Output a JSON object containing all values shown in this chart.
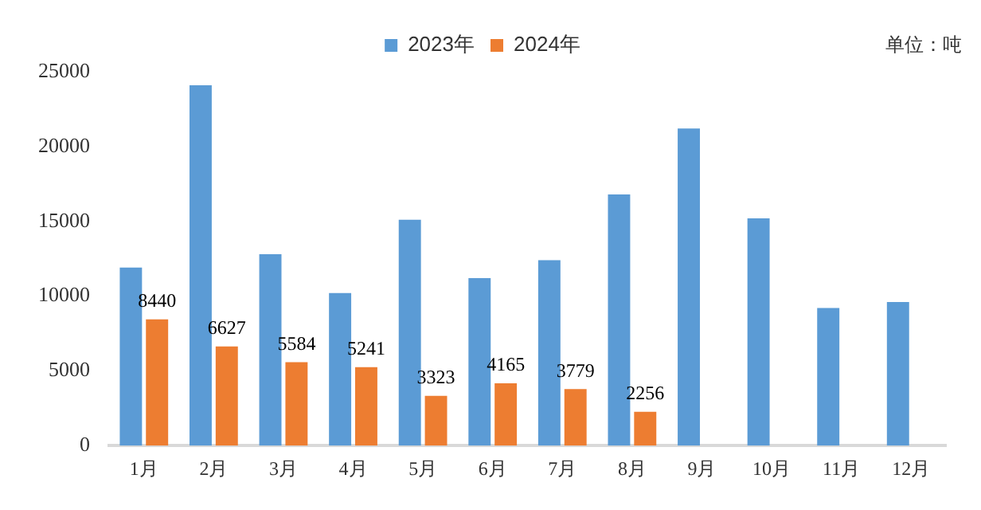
{
  "chart_data": {
    "type": "bar",
    "categories": [
      "1月",
      "2月",
      "3月",
      "4月",
      "5月",
      "6月",
      "7月",
      "8月",
      "9月",
      "10月",
      "11月",
      "12月"
    ],
    "series": [
      {
        "name": "2023年",
        "color": "#5b9bd5",
        "values": [
          11900,
          24100,
          12800,
          10200,
          15100,
          11200,
          12400,
          16800,
          21200,
          15200,
          9200,
          9600
        ]
      },
      {
        "name": "2024年",
        "color": "#ed7d31",
        "values": [
          8440,
          6627,
          5584,
          5241,
          3323,
          4165,
          3779,
          2256,
          null,
          null,
          null,
          null
        ],
        "value_labels": [
          "8440",
          "6627",
          "5584",
          "5241",
          "3323",
          "4165",
          "3779",
          "2256",
          null,
          null,
          null,
          null
        ]
      }
    ],
    "ylim": [
      0,
      25000
    ],
    "yticks": [
      0,
      5000,
      10000,
      15000,
      20000,
      25000
    ],
    "grid": false,
    "legend": "top",
    "annotations": [
      "单位：吨"
    ]
  }
}
